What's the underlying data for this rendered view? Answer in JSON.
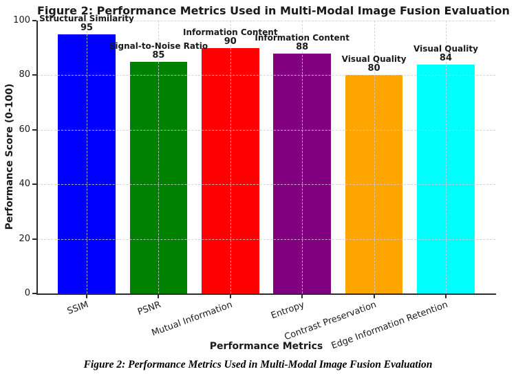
{
  "figure": {
    "caption": "Figure 2: Performance Metrics Used in Multi-Modal Image Fusion Evaluation"
  },
  "chart_data": {
    "type": "bar",
    "title": "Figure 2: Performance Metrics Used in Multi-Modal Image Fusion Evaluation",
    "xlabel": "Performance Metrics",
    "ylabel": "Performance Score (0-100)",
    "categories": [
      "SSIM",
      "PSNR",
      "Mutual Information",
      "Entropy",
      "Contrast Preservation",
      "Edge Information Retention"
    ],
    "values": [
      95,
      85,
      90,
      88,
      80,
      84
    ],
    "bar_labels": [
      "Structural Similarity",
      "Signal-to-Noise Ratio",
      "Information Content",
      "Information Content",
      "Visual Quality",
      "Visual Quality"
    ],
    "bar_colors": [
      "#0000ff",
      "#008000",
      "#ff0000",
      "#800080",
      "#ffa500",
      "#00ffff"
    ],
    "ylim": [
      0,
      100
    ],
    "yticks": [
      0,
      20,
      40,
      60,
      80,
      100
    ],
    "xtick_rotation_deg": 20,
    "grid": "dashed, both axes, drawn above bars",
    "legend": "none"
  },
  "colors": {
    "background": "#ffffff",
    "text": "#1a1a1a",
    "spine": "#2b2b2b",
    "grid": "#cdcdcd"
  }
}
